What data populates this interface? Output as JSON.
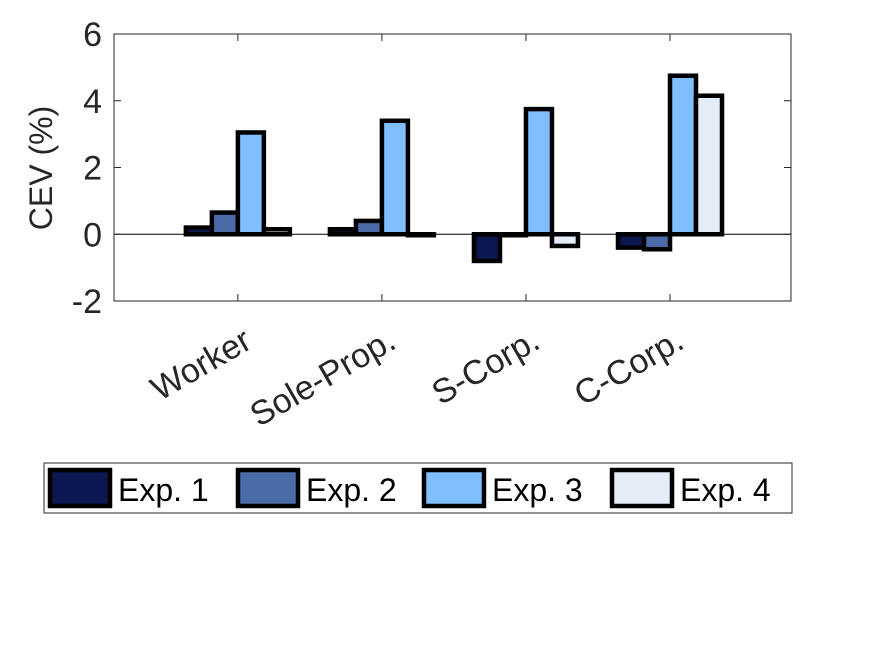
{
  "chart_data": {
    "type": "bar",
    "title": "",
    "xlabel": "",
    "ylabel": "CEV (%)",
    "ylim": [
      -2,
      6
    ],
    "yticks": [
      -2,
      0,
      2,
      4,
      6
    ],
    "categories": [
      "Worker",
      "Sole-Prop.",
      "S-Corp.",
      "C-Corp."
    ],
    "series": [
      {
        "name": "Exp. 1",
        "color": "#0c1650",
        "values": [
          0.2,
          0.15,
          -0.8,
          -0.4
        ]
      },
      {
        "name": "Exp. 2",
        "color": "#4a6aa8",
        "values": [
          0.65,
          0.4,
          0.0,
          -0.45
        ]
      },
      {
        "name": "Exp. 3",
        "color": "#80bfff",
        "values": [
          3.05,
          3.4,
          3.75,
          4.75
        ]
      },
      {
        "name": "Exp. 4",
        "color": "#e3ecf7",
        "values": [
          0.15,
          0.0,
          -0.35,
          4.15
        ]
      }
    ],
    "legend_position": "bottom",
    "grid": false
  }
}
